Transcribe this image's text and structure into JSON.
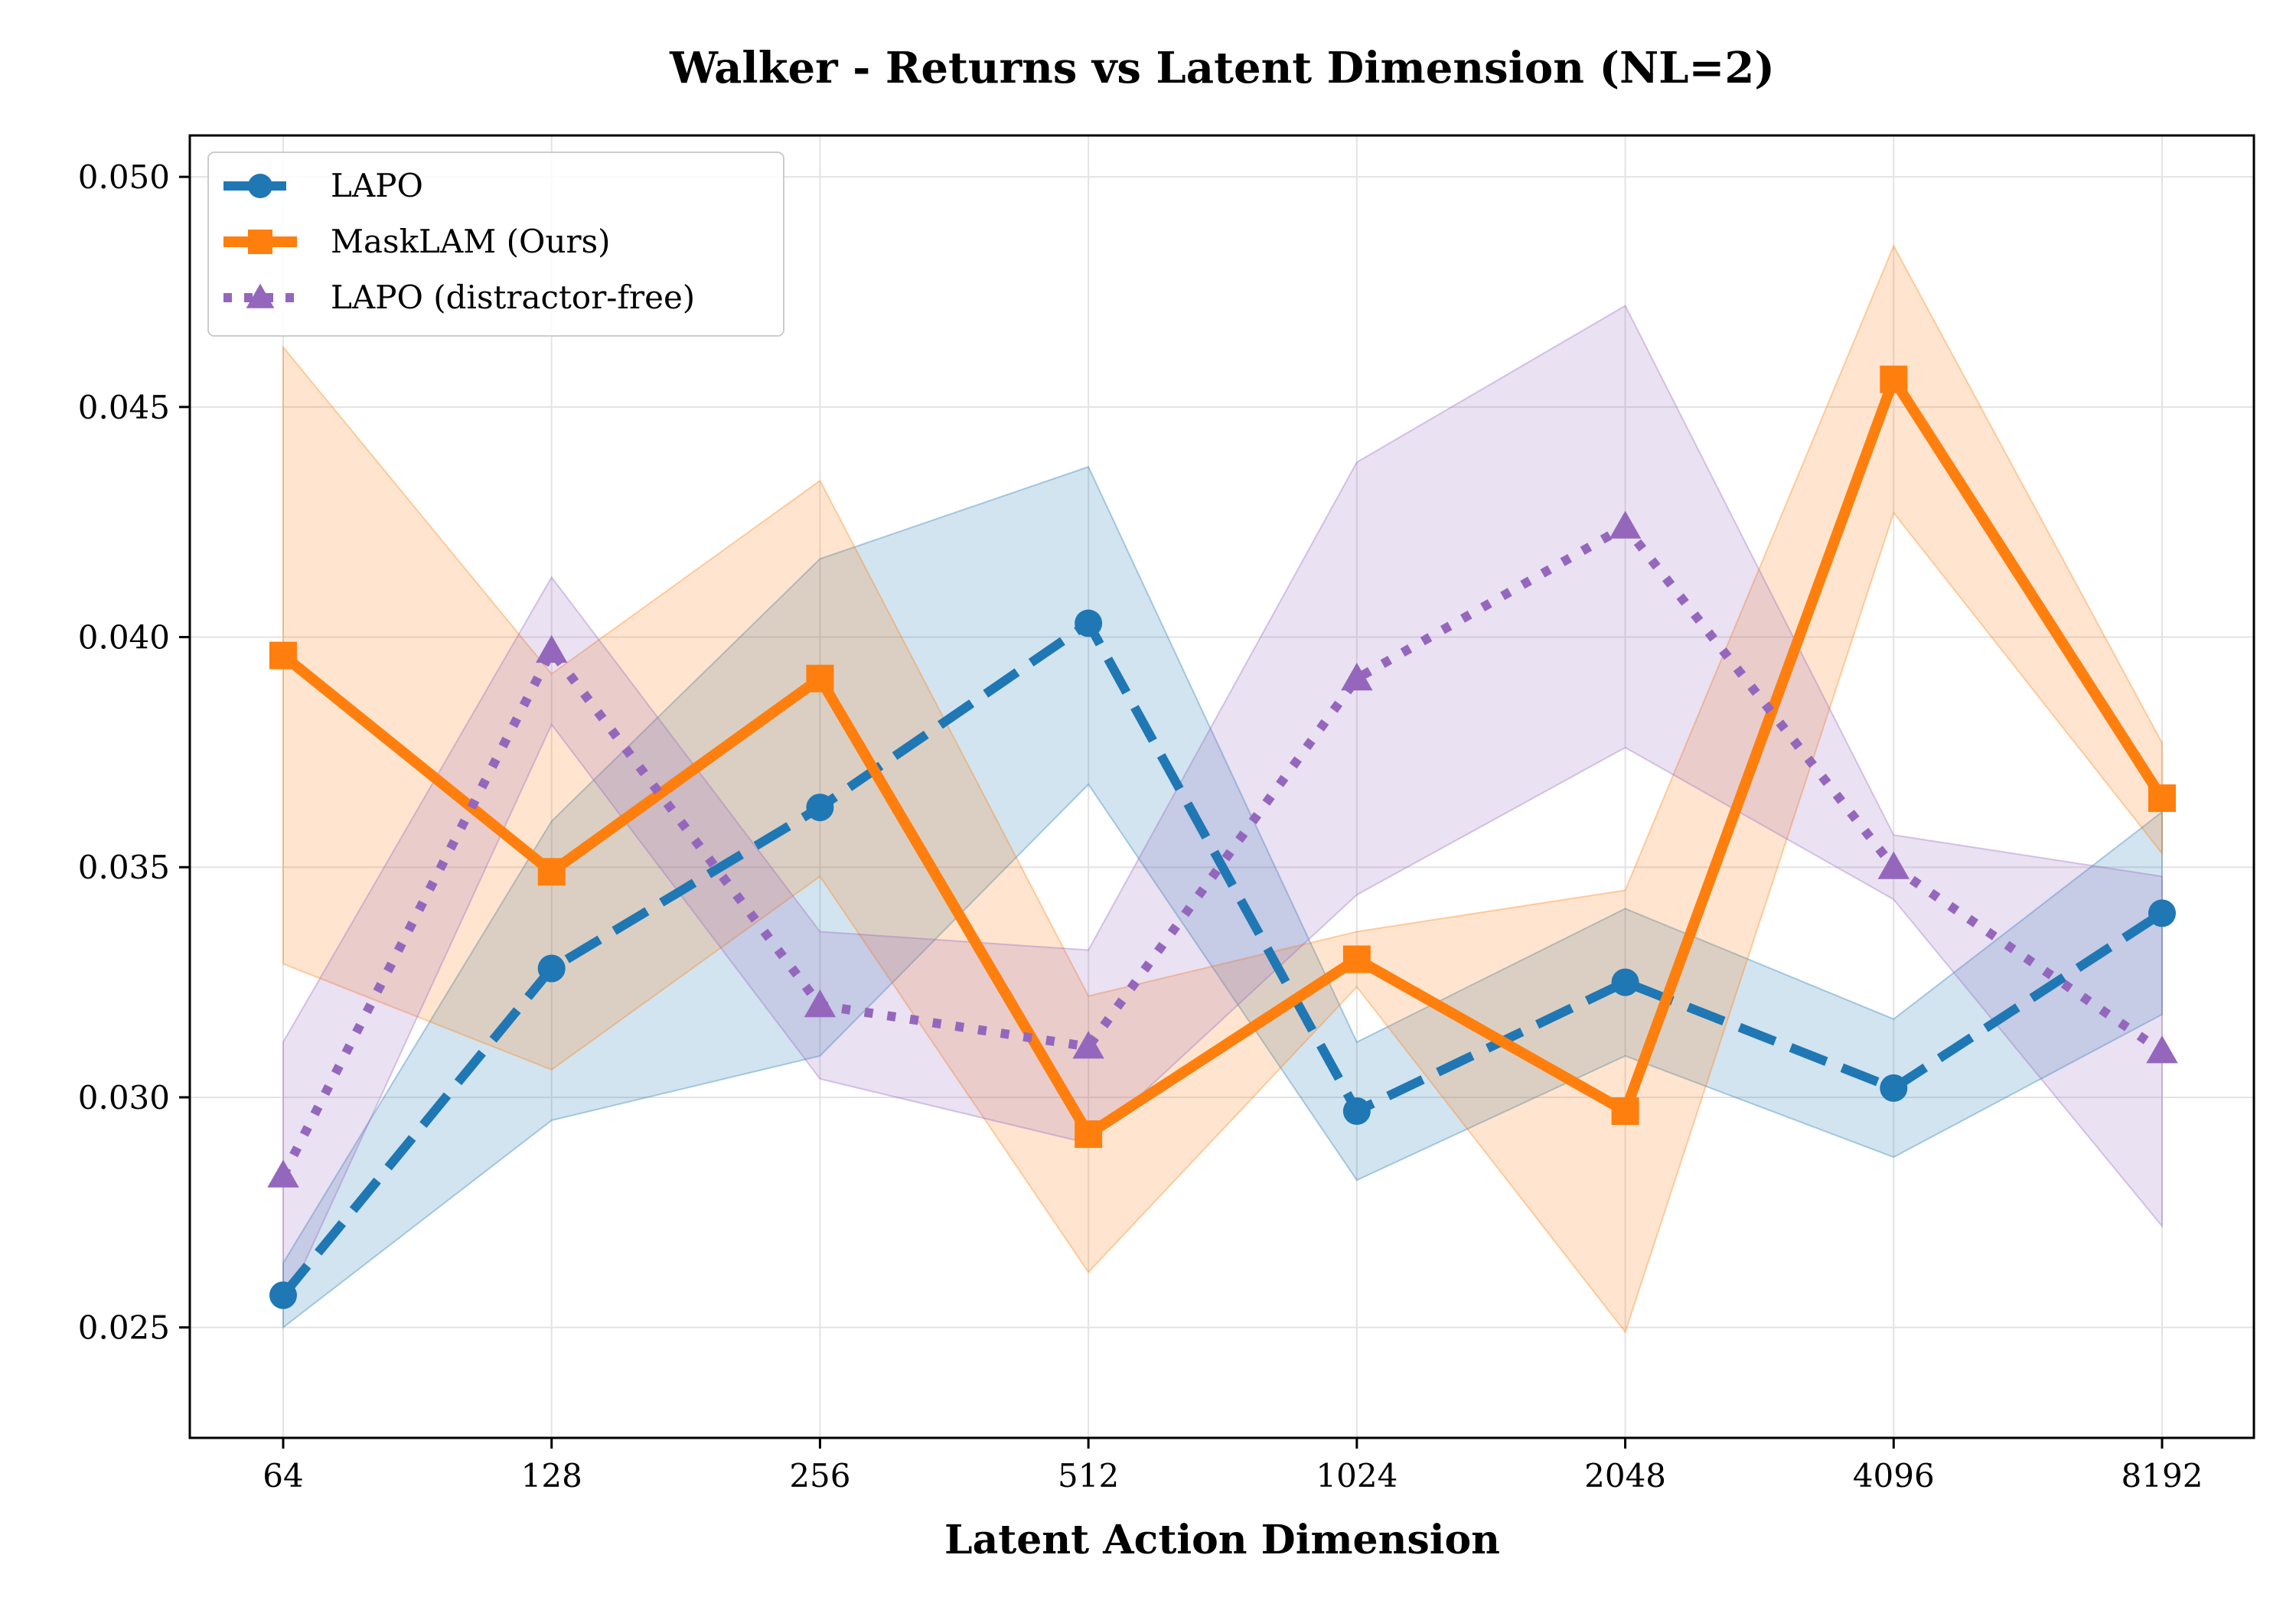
{
  "chart_data": {
    "type": "line",
    "title": "Walker - Returns vs Latent Dimension (NL=2)",
    "xlabel": "Latent Action Dimension",
    "ylabel": "",
    "categories": [
      "64",
      "128",
      "256",
      "512",
      "1024",
      "2048",
      "4096",
      "8192"
    ],
    "ylim": [
      0.0226,
      0.0509
    ],
    "yticks": [
      "0.025",
      "0.030",
      "0.035",
      "0.040",
      "0.045",
      "0.050"
    ],
    "ytick_values": [
      0.025,
      0.03,
      0.035,
      0.04,
      0.045,
      0.05
    ],
    "grid": true,
    "legend_position": "top-left",
    "series": [
      {
        "name": "LAPO",
        "color": "#1f77b4",
        "style": "dashed",
        "marker": "circle",
        "values": [
          0.0257,
          0.0328,
          0.0363,
          0.0403,
          0.0297,
          0.0325,
          0.0302,
          0.034
        ],
        "lower": [
          0.025,
          0.0295,
          0.0309,
          0.0368,
          0.0282,
          0.0309,
          0.0287,
          0.0318
        ],
        "upper": [
          0.0264,
          0.036,
          0.0417,
          0.0437,
          0.0312,
          0.0341,
          0.0317,
          0.0362
        ]
      },
      {
        "name": "MaskLAM (Ours)",
        "color": "#ff7f0e",
        "style": "solid",
        "marker": "square",
        "values": [
          0.0396,
          0.0349,
          0.0391,
          0.0292,
          0.033,
          0.0297,
          0.0456,
          0.0365
        ],
        "lower": [
          0.0329,
          0.0306,
          0.0348,
          0.0262,
          0.0324,
          0.0249,
          0.0427,
          0.0353
        ],
        "upper": [
          0.0463,
          0.0392,
          0.0434,
          0.0322,
          0.0336,
          0.0345,
          0.0485,
          0.0377
        ]
      },
      {
        "name": "LAPO (distractor-free)",
        "color": "#9467bd",
        "style": "dotted",
        "marker": "triangle",
        "values": [
          0.0283,
          0.0397,
          0.032,
          0.0311,
          0.0391,
          0.0424,
          0.035,
          0.031
        ],
        "lower": [
          0.0254,
          0.0381,
          0.0304,
          0.029,
          0.0344,
          0.0376,
          0.0343,
          0.0272
        ],
        "upper": [
          0.0312,
          0.0413,
          0.0336,
          0.0332,
          0.0438,
          0.0472,
          0.0357,
          0.0348
        ]
      }
    ]
  }
}
